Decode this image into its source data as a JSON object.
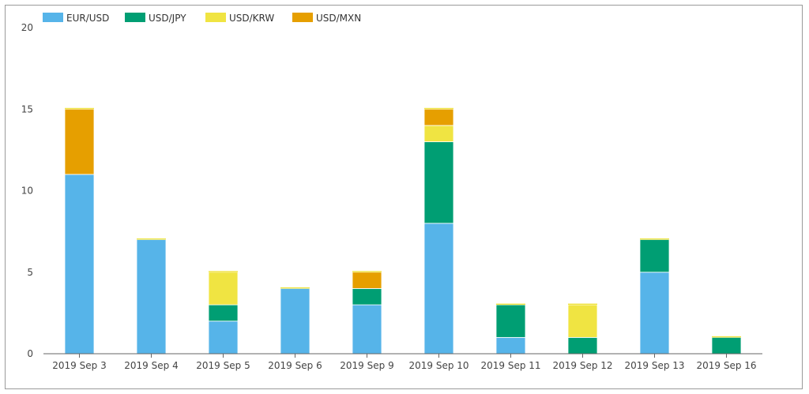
{
  "chart_data": {
    "type": "bar",
    "stacked": true,
    "categories": [
      "2019 Sep 3",
      "2019 Sep 4",
      "2019 Sep 5",
      "2019 Sep 6",
      "2019 Sep 9",
      "2019 Sep 10",
      "2019 Sep 11",
      "2019 Sep 12",
      "2019 Sep 13",
      "2019 Sep 16"
    ],
    "series": [
      {
        "name": "EUR/USD",
        "color": "#56b4e9",
        "values": [
          11,
          7,
          2,
          4,
          3,
          8,
          1,
          0,
          5,
          0
        ]
      },
      {
        "name": "USD/JPY",
        "color": "#009e73",
        "values": [
          0,
          0,
          1,
          0,
          1,
          5,
          2,
          1,
          2,
          1
        ]
      },
      {
        "name": "USD/KRW",
        "color": "#f0e442",
        "values": [
          0,
          0,
          2,
          0,
          0,
          1,
          0,
          2,
          0,
          0
        ]
      },
      {
        "name": "USD/MXN",
        "color": "#e69f00",
        "values": [
          4,
          0,
          0,
          0,
          1,
          1,
          0,
          0,
          0,
          0
        ]
      }
    ],
    "ylim": [
      0,
      20
    ],
    "yticks": [
      "0",
      "5",
      "10",
      "15",
      "20"
    ],
    "legend_position": "top-left",
    "grid": false
  }
}
